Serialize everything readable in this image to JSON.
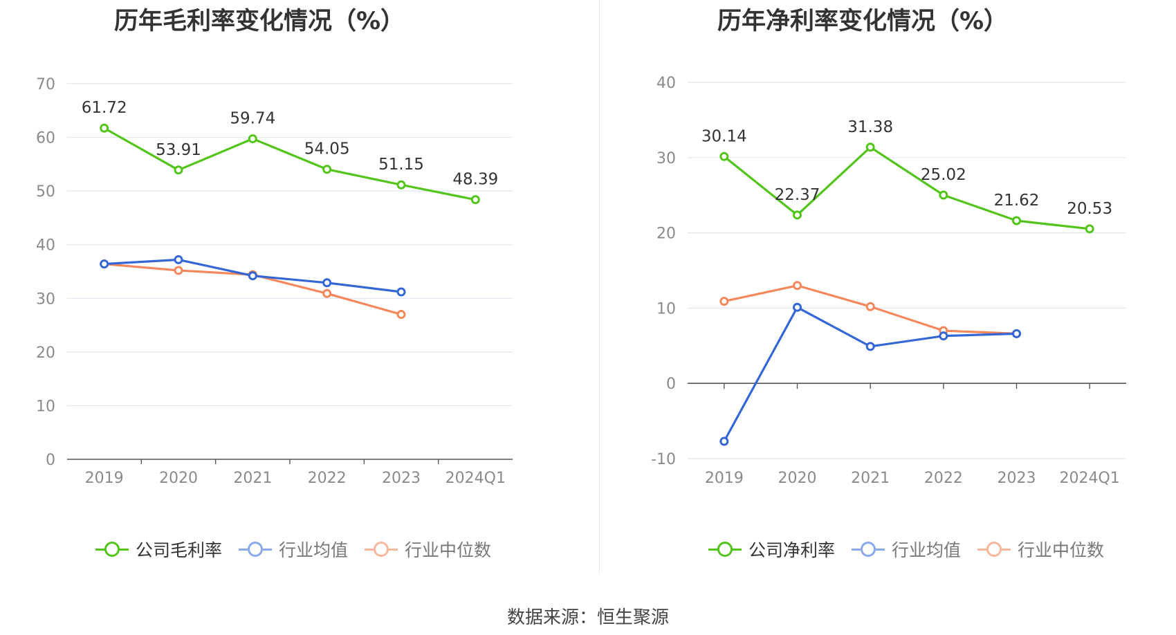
{
  "charts": [
    {
      "id": "gross",
      "title": "历年毛利率变化情况（%）",
      "legend": [
        "公司毛利率",
        "行业均值",
        "行业中位数"
      ]
    },
    {
      "id": "net",
      "title": "历年净利率变化情况（%）",
      "legend": [
        "公司净利率",
        "行业均值",
        "行业中位数"
      ]
    }
  ],
  "colors": {
    "company": "#52c41a",
    "avg": "#3366d6",
    "median": "#f5875a",
    "avg_legend": "#8aa8ec",
    "median_legend": "#f8b79a",
    "grid": "#dfe6f0",
    "axis": "#555555",
    "tick_label": "#8a8a8a",
    "data_label": "#333333"
  },
  "source": "数据来源：恒生聚源",
  "chart_data": [
    {
      "type": "line",
      "title": "历年毛利率变化情况（%）",
      "categories": [
        "2019",
        "2020",
        "2021",
        "2022",
        "2023",
        "2024Q1"
      ],
      "ylim": [
        0,
        70
      ],
      "yticks": [
        0,
        10,
        20,
        30,
        40,
        50,
        60,
        70
      ],
      "show_x_ticks": false,
      "series": [
        {
          "name": "公司毛利率",
          "key": "company",
          "values": [
            61.72,
            53.91,
            59.74,
            54.05,
            51.15,
            48.39
          ],
          "labels": true
        },
        {
          "name": "行业均值",
          "key": "avg",
          "values": [
            36.4,
            37.2,
            34.2,
            32.9,
            31.2,
            null
          ],
          "labels": false
        },
        {
          "name": "行业中位数",
          "key": "median",
          "values": [
            36.4,
            35.2,
            34.4,
            30.9,
            27.0,
            null
          ],
          "labels": false
        }
      ]
    },
    {
      "type": "line",
      "title": "历年净利率变化情况（%）",
      "categories": [
        "2019",
        "2020",
        "2021",
        "2022",
        "2023",
        "2024Q1"
      ],
      "ylim": [
        -10,
        40
      ],
      "yticks": [
        -10,
        0,
        10,
        20,
        30,
        40
      ],
      "show_x_ticks": true,
      "series": [
        {
          "name": "公司净利率",
          "key": "company",
          "values": [
            30.14,
            22.37,
            31.38,
            25.02,
            21.62,
            20.53
          ],
          "labels": true
        },
        {
          "name": "行业均值",
          "key": "avg",
          "values": [
            -7.7,
            10.1,
            4.9,
            6.3,
            6.6,
            null
          ],
          "labels": false
        },
        {
          "name": "行业中位数",
          "key": "median",
          "values": [
            10.9,
            13.0,
            10.2,
            7.0,
            6.6,
            null
          ],
          "labels": false
        }
      ]
    }
  ]
}
